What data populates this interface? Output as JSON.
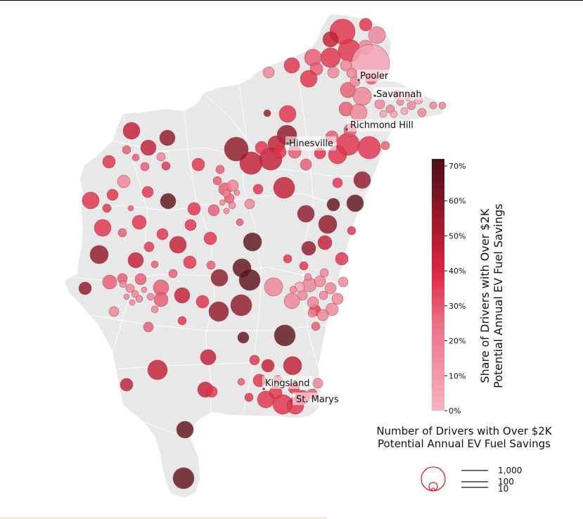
{
  "colors": {
    "land": "#e8e8e8",
    "boundary": "#ffffff",
    "scale_low": "#f6b3bf",
    "scale_mid": "#e02440",
    "scale_high": "#4a0f16",
    "legend_circle": "#d9232f"
  },
  "cities": [
    {
      "name": "Pooler"
    },
    {
      "name": "Savannah"
    },
    {
      "name": "Richmond Hill"
    },
    {
      "name": "Hinesville"
    },
    {
      "name": "Kingsland"
    },
    {
      "name": "St. Marys"
    }
  ],
  "colorbar": {
    "title_line1": "Share of Drivers with Over $2K",
    "title_line2": "Potential Annual EV Fuel Savings",
    "ticks": [
      "0%",
      "10%",
      "20%",
      "30%",
      "40%",
      "50%",
      "60%",
      "70%"
    ],
    "min": 0,
    "max": 72
  },
  "size_legend": {
    "title_line1": "Number of Drivers with Over $2K",
    "title_line2": "Potential Annual EV Fuel Savings",
    "entries": [
      {
        "label": "1,000",
        "value": 1000
      },
      {
        "label": "100",
        "value": 100
      },
      {
        "label": "10",
        "value": 10
      }
    ]
  }
}
